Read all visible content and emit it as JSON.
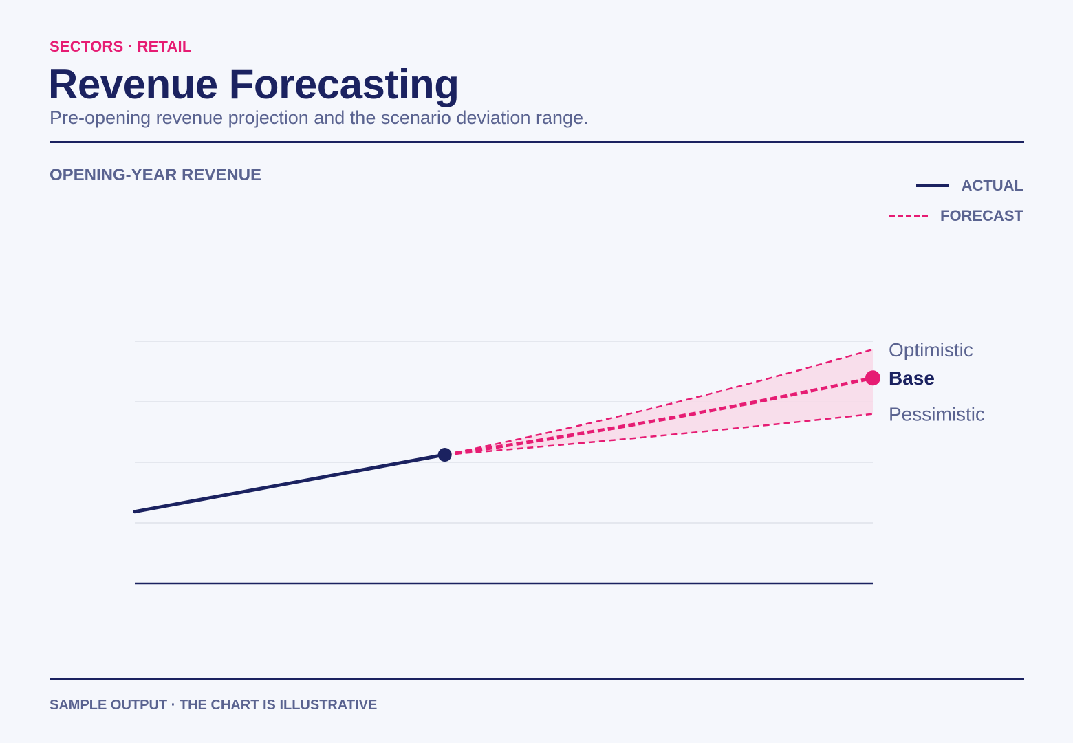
{
  "header": {
    "eyebrow": "SECTORS · RETAIL",
    "title": "Revenue Forecasting",
    "subtitle": "Pre-opening revenue projection and the scenario deviation range."
  },
  "chart_label": "OPENING-YEAR REVENUE",
  "legend": [
    {
      "label": "ACTUAL",
      "style": "solid"
    },
    {
      "label": "FORECAST",
      "style": "dashed"
    }
  ],
  "footer": "SAMPLE OUTPUT · THE CHART IS ILLUSTRATIVE",
  "colors": {
    "navy": "#1b2260",
    "accent": "#e61c73",
    "muted": "#5a6390",
    "band": "#f8d9e8",
    "grid": "#dfe2ea"
  },
  "chart_data": {
    "type": "line",
    "title": "",
    "xlabel": "",
    "ylabel": "",
    "x_range": [
      0,
      100
    ],
    "ylim": [
      0,
      100
    ],
    "y_gridlines": [
      20,
      40,
      60,
      80
    ],
    "actual": {
      "name": "ACTUAL",
      "points": [
        {
          "x": 0,
          "y": 23.7
        },
        {
          "x": 42,
          "y": 42.5
        }
      ]
    },
    "forecast": {
      "name": "FORECAST",
      "start": {
        "x": 42,
        "y": 42.5
      },
      "scenarios": [
        {
          "name": "Optimistic",
          "curve": 1.4,
          "end": {
            "x": 100,
            "y": 77.3
          }
        },
        {
          "name": "Base",
          "curve": 1.2,
          "end": {
            "x": 100,
            "y": 67.9
          },
          "emphasis": true
        },
        {
          "name": "Pessimistic",
          "curve": 0.5,
          "end": {
            "x": 100,
            "y": 56.0
          }
        }
      ]
    }
  }
}
